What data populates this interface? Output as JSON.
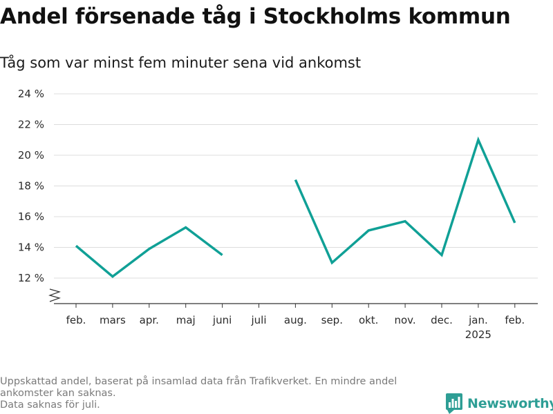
{
  "chart_data": {
    "type": "line",
    "title": "Andel försenade tåg i Stockholms kommun",
    "subtitle": "Tåg som var minst fem minuter sena vid ankomst",
    "xlabel": "",
    "ylabel": "",
    "categories": [
      "feb.",
      "mars",
      "apr.",
      "maj",
      "juni",
      "juli",
      "aug.",
      "sep.",
      "okt.",
      "nov.",
      "dec.",
      "jan.",
      "feb."
    ],
    "year_labels": [
      "",
      "",
      "",
      "",
      "",
      "",
      "",
      "",
      "",
      "",
      "",
      "2025",
      ""
    ],
    "series": [
      {
        "values": [
          14.1,
          12.1,
          13.9,
          15.3,
          13.5,
          null,
          18.4,
          13.0,
          15.1,
          15.7,
          13.5,
          21.0,
          15.6
        ]
      }
    ],
    "ylim": [
      11,
      24
    ],
    "yticks": [
      12,
      14,
      16,
      18,
      20,
      22,
      24
    ],
    "ytick_labels": [
      "12 %",
      "14 %",
      "16 %",
      "18 %",
      "20 %",
      "22 %",
      "24 %"
    ],
    "grid": true,
    "legend": "none",
    "line_color": "#10a096",
    "axis_break": true
  },
  "footnote": {
    "line1": "Uppskattad andel, baserat på insamlad data från Trafikverket. En mindre andel",
    "line2": "ankomster kan saknas.",
    "line3": "Data saknas för juli."
  },
  "brand": {
    "name": "Newsworthy",
    "color": "#2e9e95",
    "icon": "bar-chart-logo-icon"
  }
}
